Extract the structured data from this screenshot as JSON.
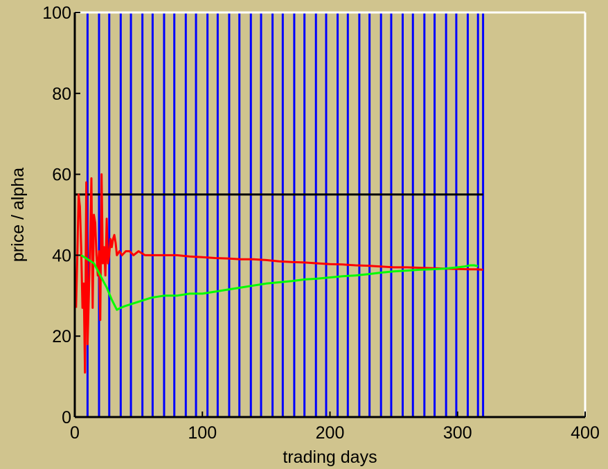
{
  "chart_data": {
    "type": "line",
    "xlabel": "trading days",
    "ylabel": "price / alpha",
    "xlim": [
      0,
      400
    ],
    "ylim": [
      0,
      100
    ],
    "xticks": [
      0,
      100,
      200,
      300,
      400
    ],
    "yticks": [
      0,
      20,
      40,
      60,
      80,
      100
    ],
    "xtick_labels": [
      "0",
      "100",
      "200",
      "300",
      "400"
    ],
    "ytick_labels": [
      "0",
      "20",
      "40",
      "60",
      "80",
      "100"
    ],
    "grid": false,
    "background_color": "#d0c48e",
    "axes_color": "#ffffff",
    "vertical_markers": {
      "color": "#0000ff",
      "x": [
        10,
        19,
        27,
        36,
        44,
        53,
        61,
        70,
        78,
        87,
        95,
        104,
        112,
        121,
        129,
        138,
        146,
        155,
        163,
        172,
        180,
        189,
        197,
        206,
        214,
        223,
        231,
        240,
        248,
        257,
        265,
        274,
        282,
        291,
        299,
        308,
        316,
        320
      ],
      "y_range": [
        0,
        100
      ]
    },
    "series": [
      {
        "color": "#000000",
        "x": [
          0,
          320
        ],
        "y": [
          55,
          55
        ]
      },
      {
        "color": "#ff0000",
        "x": [
          1,
          2,
          3,
          4,
          5,
          6,
          7,
          8,
          9,
          10,
          11,
          12,
          13,
          14,
          15,
          16,
          17,
          18,
          19,
          20,
          21,
          22,
          23,
          24,
          25,
          26,
          27,
          28,
          29,
          30,
          31,
          32,
          33,
          35,
          37,
          40,
          43,
          46,
          50,
          55,
          60,
          70,
          80,
          90,
          100,
          110,
          120,
          130,
          140,
          150,
          160,
          170,
          180,
          190,
          200,
          210,
          220,
          230,
          240,
          250,
          260,
          270,
          280,
          290,
          300,
          310,
          315,
          320
        ],
        "y": [
          27,
          40,
          55,
          52,
          42,
          27,
          33,
          11,
          58,
          18,
          30,
          43,
          59,
          27,
          50,
          48,
          40,
          35,
          41,
          24,
          60,
          38,
          42,
          35,
          49,
          38,
          40,
          44,
          42,
          44,
          45,
          43,
          40,
          41,
          40,
          41,
          41,
          40,
          41,
          40,
          40,
          40,
          40,
          39.7,
          39.5,
          39.3,
          39.2,
          39,
          39,
          38.8,
          38.5,
          38.3,
          38.2,
          38,
          37.8,
          37.7,
          37.5,
          37.4,
          37.2,
          37,
          37,
          36.9,
          36.8,
          36.7,
          36.6,
          36.5,
          36.5,
          36.4
        ]
      },
      {
        "color": "#00ff00",
        "x": [
          5,
          10,
          15,
          20,
          25,
          29,
          33,
          36,
          40,
          50,
          60,
          70,
          80,
          90,
          100,
          110,
          120,
          130,
          140,
          150,
          160,
          170,
          180,
          190,
          200,
          210,
          220,
          230,
          240,
          250,
          260,
          270,
          280,
          290,
          300,
          305,
          310,
          313,
          316
        ],
        "y": [
          40,
          39,
          38,
          35,
          32,
          29,
          26.5,
          27,
          27.5,
          28.5,
          29.5,
          30,
          30,
          30.5,
          30.5,
          31,
          31.5,
          32,
          32.5,
          33,
          33.3,
          33.6,
          34,
          34.2,
          34.5,
          34.8,
          35,
          35.3,
          35.7,
          36,
          36.2,
          36.4,
          36.5,
          36.7,
          37,
          37.2,
          37.5,
          37.5,
          37.3
        ]
      }
    ]
  }
}
